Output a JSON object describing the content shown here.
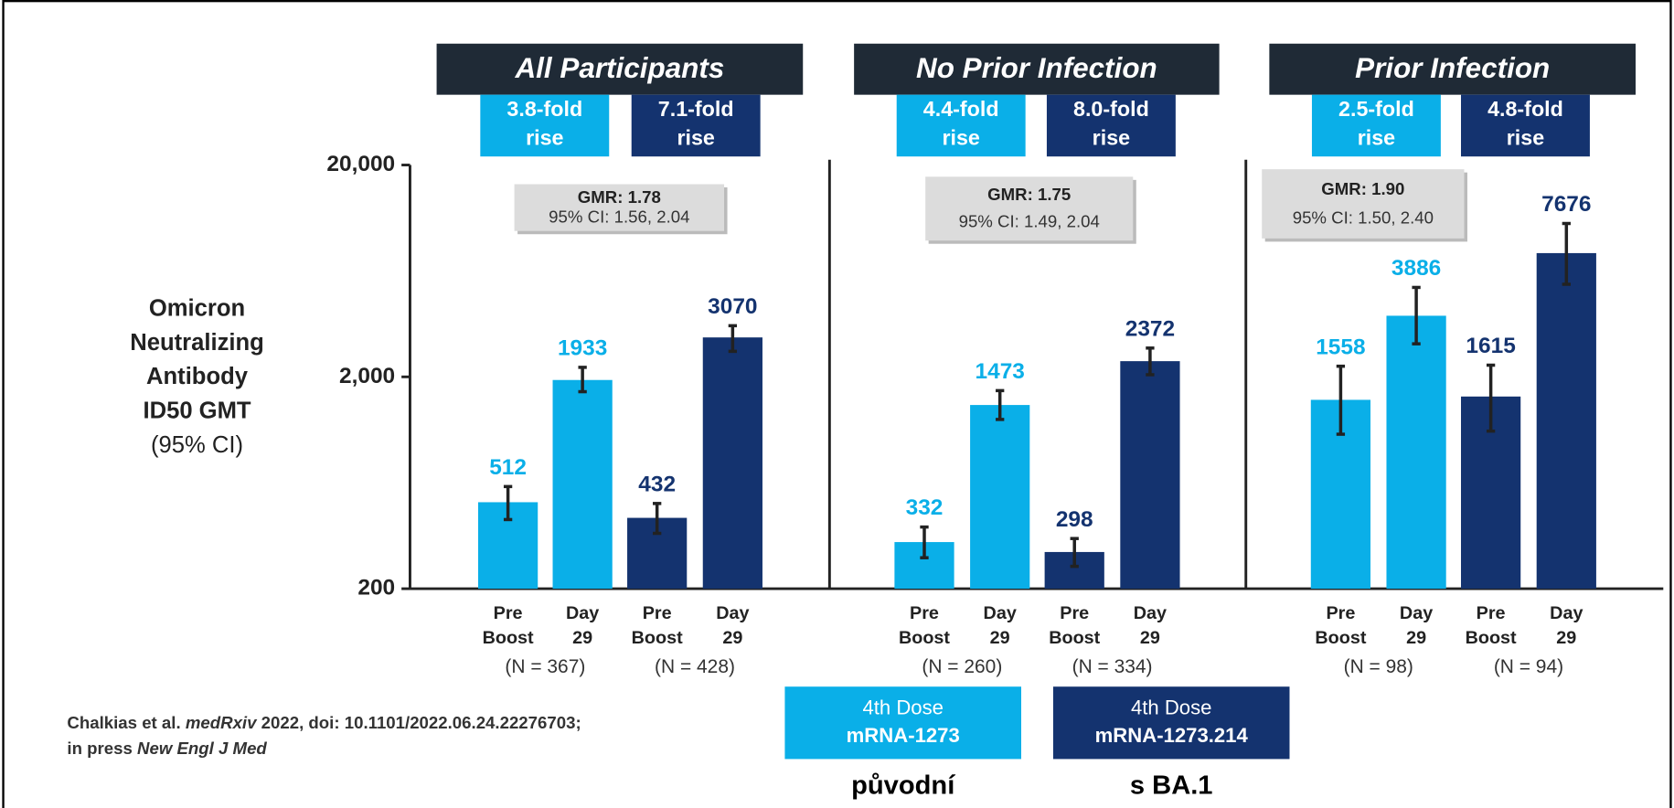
{
  "chart_data": [
    {
      "type": "bar",
      "title": "All Participants",
      "log_scale": true,
      "ylabel": [
        "Omicron",
        "Neutralizing",
        "Antibody",
        "ID50 GMT",
        "(95% CI)"
      ],
      "ylim": [
        200,
        20000
      ],
      "yticks": [
        {
          "value": 200,
          "label": "200"
        },
        {
          "value": 2000,
          "label": "2,000"
        },
        {
          "value": 20000,
          "label": "20,000"
        }
      ],
      "fold_rises": [
        "3.8-fold rise",
        "7.1-fold rise"
      ],
      "gmr": "GMR: 1.78",
      "gmr_ci": "95% CI: 1.56, 2.04",
      "categories": [
        "Pre Boost",
        "Day 29",
        "Pre Boost",
        "Day 29"
      ],
      "group_labels": [
        "(N = 367)",
        "(N = 428)"
      ],
      "colors": [
        "#0aafe8",
        "#0aafe8",
        "#14336f",
        "#14336f"
      ],
      "values": [
        512,
        1933,
        432,
        3070
      ],
      "ci_low": [
        424,
        1702,
        365,
        2640
      ],
      "ci_high": [
        607,
        2218,
        505,
        3487
      ]
    },
    {
      "type": "bar",
      "title": "No Prior Infection",
      "fold_rises": [
        "4.4-fold rise",
        "8.0-fold rise"
      ],
      "gmr": "GMR: 1.75",
      "gmr_ci": "95% CI: 1.49, 2.04",
      "categories": [
        "Pre Boost",
        "Day 29",
        "Pre Boost",
        "Day 29"
      ],
      "group_labels": [
        "(N = 260)",
        "(N = 334)"
      ],
      "colors": [
        "#0aafe8",
        "#0aafe8",
        "#14336f",
        "#14336f"
      ],
      "values": [
        332,
        1473,
        298,
        2372
      ],
      "ci_low": [
        280,
        1259,
        255,
        2047
      ],
      "ci_high": [
        391,
        1722,
        345,
        2735
      ]
    },
    {
      "type": "bar",
      "title": "Prior Infection",
      "fold_rises": [
        "2.5-fold rise",
        "4.8-fold rise"
      ],
      "gmr": "GMR: 1.90",
      "gmr_ci": "95% CI: 1.50, 2.40",
      "categories": [
        "Pre Boost",
        "Day 29",
        "Pre Boost",
        "Day 29"
      ],
      "group_labels": [
        "(N = 98)",
        "(N = 94)"
      ],
      "colors": [
        "#0aafe8",
        "#0aafe8",
        "#14336f",
        "#14336f"
      ],
      "values": [
        1558,
        3886,
        1615,
        7676
      ],
      "ci_low": [
        1072,
        2864,
        1109,
        5471
      ],
      "ci_high": [
        2245,
        5287,
        2271,
        10593
      ]
    }
  ],
  "legend": [
    {
      "line1": "4th Dose",
      "line2": "mRNA-1273",
      "color": "#0aafe8",
      "note": "původní"
    },
    {
      "line1": "4th Dose",
      "line2": "mRNA-1273.214",
      "color": "#14336f",
      "note": "s BA.1"
    }
  ],
  "source": {
    "line1": [
      "Chalkias et al. ",
      "medRxiv",
      " 2022, doi: 10.1101/2022.06.24.22276703;"
    ],
    "line2": [
      "in press ",
      "New Engl J Med"
    ]
  }
}
